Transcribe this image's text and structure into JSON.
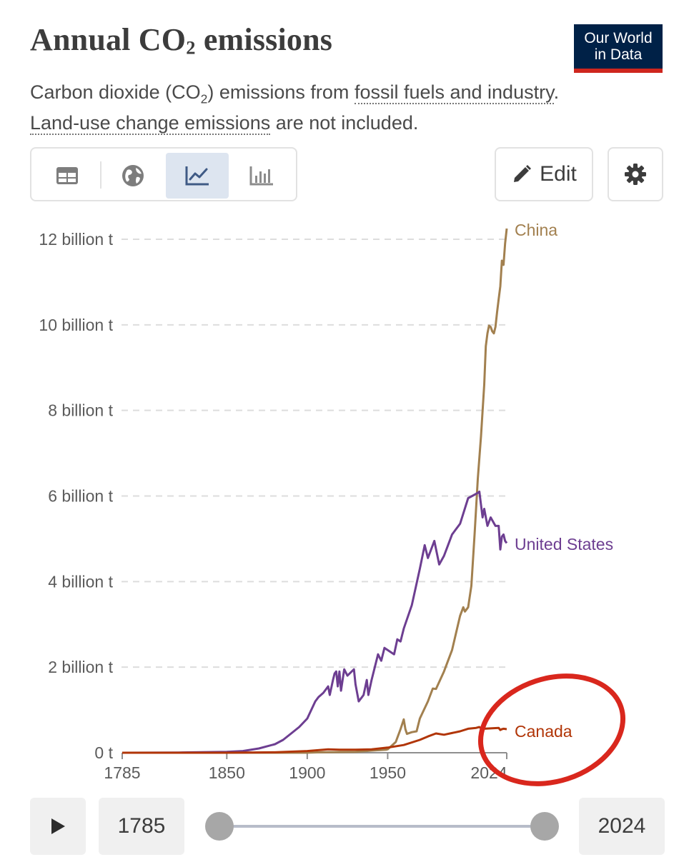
{
  "header": {
    "title_main": "Annual CO",
    "title_sub": "2",
    "title_end": " emissions",
    "logo_line1": "Our World",
    "logo_line2": "in Data",
    "subtitle_a": "Carbon dioxide (CO",
    "subtitle_sub": "2",
    "subtitle_b": ") emissions from ",
    "subtitle_link1": "fossil fuels and industry",
    "subtitle_c": ".",
    "subtitle_link2": "Land-use change emissions",
    "subtitle_d": " are not included."
  },
  "toolbar": {
    "tabs": [
      "table",
      "map",
      "chart",
      "marimekko"
    ],
    "active_tab": "chart",
    "edit_label": "Edit"
  },
  "timeline": {
    "start_year": "1785",
    "end_year": "2024"
  },
  "colors": {
    "china": "#a2804f",
    "united_states": "#6d3e91",
    "canada": "#b13507",
    "annotation": "#d9271d",
    "grid": "#dddddd"
  },
  "chart_data": {
    "type": "line",
    "title": "Annual CO₂ emissions",
    "x_ticks": [
      "1785",
      "1850",
      "1900",
      "1950",
      "2024"
    ],
    "y_ticks": [
      "0 t",
      "2 billion t",
      "4 billion t",
      "6 billion t",
      "8 billion t",
      "10 billion t",
      "12 billion t"
    ],
    "xlim": [
      1785,
      2024
    ],
    "ylim": [
      0,
      12.3
    ],
    "y_unit": "billion t",
    "grid": "horizontal dashed",
    "legend": "inline labels at line ends",
    "series": [
      {
        "name": "China",
        "color_key": "china",
        "points": [
          [
            1785,
            0
          ],
          [
            1899,
            0.0
          ],
          [
            1908,
            0.01
          ],
          [
            1930,
            0.02
          ],
          [
            1940,
            0.05
          ],
          [
            1949,
            0.07
          ],
          [
            1950,
            0.08
          ],
          [
            1955,
            0.25
          ],
          [
            1958,
            0.55
          ],
          [
            1960,
            0.78
          ],
          [
            1961,
            0.55
          ],
          [
            1962,
            0.44
          ],
          [
            1965,
            0.48
          ],
          [
            1968,
            0.5
          ],
          [
            1970,
            0.8
          ],
          [
            1975,
            1.2
          ],
          [
            1978,
            1.5
          ],
          [
            1980,
            1.49
          ],
          [
            1985,
            1.9
          ],
          [
            1990,
            2.4
          ],
          [
            1995,
            3.2
          ],
          [
            1997,
            3.4
          ],
          [
            1998,
            3.3
          ],
          [
            2000,
            3.4
          ],
          [
            2002,
            3.9
          ],
          [
            2004,
            5.1
          ],
          [
            2006,
            6.4
          ],
          [
            2008,
            7.4
          ],
          [
            2010,
            8.6
          ],
          [
            2011,
            9.5
          ],
          [
            2012,
            9.8
          ],
          [
            2013,
            9.98
          ],
          [
            2014,
            9.95
          ],
          [
            2015,
            9.85
          ],
          [
            2016,
            9.8
          ],
          [
            2017,
            9.95
          ],
          [
            2018,
            10.3
          ],
          [
            2019,
            10.6
          ],
          [
            2020,
            10.9
          ],
          [
            2021,
            11.5
          ],
          [
            2022,
            11.4
          ],
          [
            2023,
            11.9
          ],
          [
            2024,
            12.25
          ]
        ]
      },
      {
        "name": "United States",
        "color_key": "united_states",
        "points": [
          [
            1785,
            0
          ],
          [
            1820,
            0.005
          ],
          [
            1850,
            0.02
          ],
          [
            1860,
            0.04
          ],
          [
            1870,
            0.1
          ],
          [
            1880,
            0.2
          ],
          [
            1885,
            0.3
          ],
          [
            1890,
            0.45
          ],
          [
            1895,
            0.6
          ],
          [
            1900,
            0.8
          ],
          [
            1905,
            1.2
          ],
          [
            1907,
            1.3
          ],
          [
            1910,
            1.4
          ],
          [
            1913,
            1.55
          ],
          [
            1914,
            1.35
          ],
          [
            1916,
            1.7
          ],
          [
            1917,
            1.85
          ],
          [
            1918,
            1.9
          ],
          [
            1919,
            1.55
          ],
          [
            1920,
            1.9
          ],
          [
            1921,
            1.45
          ],
          [
            1923,
            1.95
          ],
          [
            1925,
            1.8
          ],
          [
            1929,
            1.95
          ],
          [
            1930,
            1.6
          ],
          [
            1932,
            1.2
          ],
          [
            1935,
            1.35
          ],
          [
            1937,
            1.7
          ],
          [
            1938,
            1.35
          ],
          [
            1940,
            1.7
          ],
          [
            1944,
            2.3
          ],
          [
            1946,
            2.15
          ],
          [
            1948,
            2.45
          ],
          [
            1950,
            2.4
          ],
          [
            1954,
            2.3
          ],
          [
            1956,
            2.65
          ],
          [
            1958,
            2.6
          ],
          [
            1960,
            2.9
          ],
          [
            1965,
            3.45
          ],
          [
            1970,
            4.3
          ],
          [
            1973,
            4.85
          ],
          [
            1975,
            4.55
          ],
          [
            1979,
            4.95
          ],
          [
            1982,
            4.4
          ],
          [
            1985,
            4.6
          ],
          [
            1990,
            5.1
          ],
          [
            1995,
            5.35
          ],
          [
            2000,
            5.95
          ],
          [
            2005,
            6.05
          ],
          [
            2007,
            6.1
          ],
          [
            2009,
            5.5
          ],
          [
            2010,
            5.7
          ],
          [
            2012,
            5.3
          ],
          [
            2014,
            5.5
          ],
          [
            2017,
            5.3
          ],
          [
            2019,
            5.3
          ],
          [
            2020,
            4.75
          ],
          [
            2021,
            5.05
          ],
          [
            2022,
            5.1
          ],
          [
            2023,
            4.95
          ],
          [
            2024,
            4.9
          ]
        ]
      },
      {
        "name": "Canada",
        "color_key": "canada",
        "points": [
          [
            1785,
            0
          ],
          [
            1850,
            0
          ],
          [
            1880,
            0.01
          ],
          [
            1900,
            0.04
          ],
          [
            1913,
            0.08
          ],
          [
            1920,
            0.07
          ],
          [
            1930,
            0.07
          ],
          [
            1940,
            0.08
          ],
          [
            1950,
            0.12
          ],
          [
            1960,
            0.18
          ],
          [
            1970,
            0.3
          ],
          [
            1975,
            0.38
          ],
          [
            1980,
            0.45
          ],
          [
            1985,
            0.42
          ],
          [
            1990,
            0.46
          ],
          [
            1995,
            0.5
          ],
          [
            2000,
            0.56
          ],
          [
            2005,
            0.58
          ],
          [
            2007,
            0.6
          ],
          [
            2009,
            0.54
          ],
          [
            2010,
            0.56
          ],
          [
            2015,
            0.57
          ],
          [
            2019,
            0.58
          ],
          [
            2020,
            0.53
          ],
          [
            2021,
            0.55
          ],
          [
            2022,
            0.56
          ],
          [
            2024,
            0.55
          ]
        ]
      }
    ]
  }
}
